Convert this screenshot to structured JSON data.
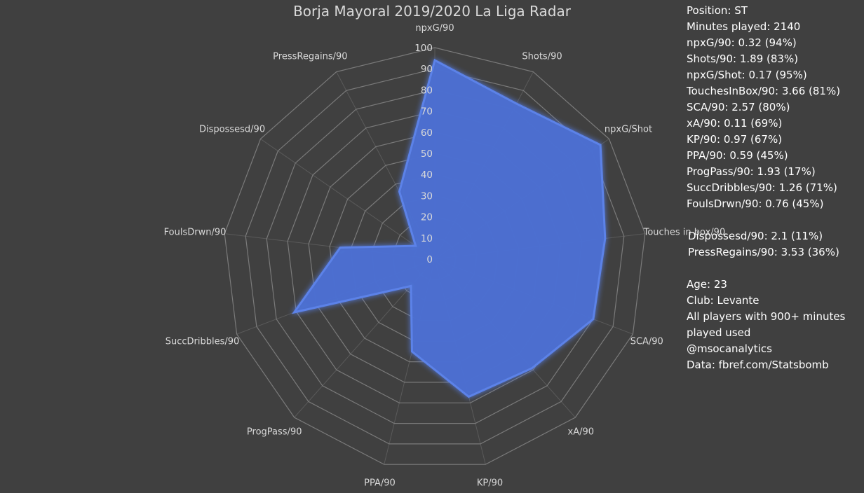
{
  "chart_data": {
    "type": "radar",
    "title": "Borja Mayoral 2019/2020 La Liga Radar",
    "categories": [
      "npxG/90",
      "Shots/90",
      "npxG/Shot",
      "Touches in box/90",
      "SCA/90",
      "xA/90",
      "KP/90",
      "PPA/90",
      "ProgPass/90",
      "SuccDribbles/90",
      "FoulsDrwn/90",
      "Dispossesd/90",
      "PressRegains/90"
    ],
    "values": [
      94,
      83,
      95,
      81,
      80,
      69,
      67,
      45,
      17,
      71,
      45,
      11,
      36
    ],
    "rlim": [
      0,
      100
    ],
    "ticks": [
      0,
      10,
      20,
      30,
      40,
      50,
      60,
      70,
      80,
      90,
      100
    ],
    "tick_labels": [
      "0",
      "10",
      "20",
      "30",
      "40",
      "50",
      "60",
      "70",
      "80",
      "90",
      "100"
    ],
    "fill_color": "#4c6fd1",
    "grid_color": "#7a7a7a",
    "grid": true
  },
  "info": {
    "stats": [
      "Position: ST",
      "Minutes played: 2140",
      "npxG/90: 0.32 (94%)",
      "Shots/90: 1.89 (83%)",
      "npxG/Shot:  0.17 (95%)",
      "TouchesInBox/90: 3.66 (81%)",
      "SCA/90: 2.57 (80%)",
      "xA/90: 0.11 (69%)",
      "KP/90: 0.97 (67%)",
      "PPA/90: 0.59 (45%)",
      "ProgPass/90: 1.93 (17%)",
      "SuccDribbles/90: 1.26 (71%)",
      "FoulsDrwn/90: 0.76 (45%)"
    ],
    "defense": [
      "Dispossesd/90: 2.1 (11%)",
      "PressRegains/90: 3.53 (36%)"
    ],
    "meta": [
      "Age: 23",
      "Club: Levante",
      "All players with 900+ minutes",
      "played used",
      "@msocanalytics",
      "Data: fbref.com/Statsbomb"
    ]
  }
}
